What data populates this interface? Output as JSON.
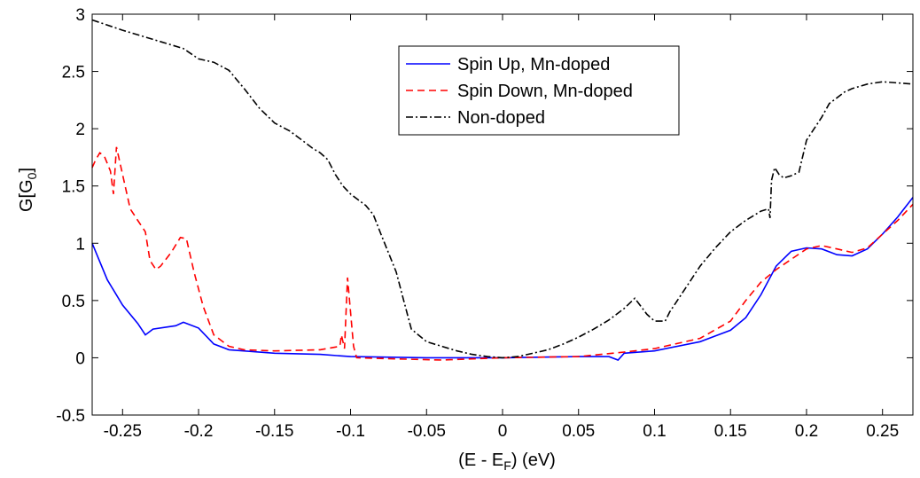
{
  "chart_data": {
    "type": "line",
    "xlabel": "(E - E",
    "xlabel_sub": "F",
    "xlabel_tail": ") (eV)",
    "ylabel": "G[G",
    "ylabel_sub": "0",
    "ylabel_tail": "]",
    "xlim": [
      -0.27,
      0.27
    ],
    "ylim": [
      -0.5,
      3
    ],
    "grid": false,
    "legend_position": "top-center",
    "xticks": [
      -0.25,
      -0.2,
      -0.15,
      -0.1,
      -0.05,
      0,
      0.05,
      0.1,
      0.15,
      0.2,
      0.25
    ],
    "xtick_labels": [
      "-0.25",
      "-0.2",
      "-0.15",
      "-0.1",
      "-0.05",
      "0",
      "0.05",
      "0.1",
      "0.15",
      "0.2",
      "0.25"
    ],
    "yticks": [
      -0.5,
      0,
      0.5,
      1,
      1.5,
      2,
      2.5,
      3
    ],
    "ytick_labels": [
      "-0.5",
      "0",
      "0.5",
      "1",
      "1.5",
      "2",
      "2.5",
      "3"
    ],
    "series": [
      {
        "name": "Spin Up, Mn-doped",
        "color": "#0000ff",
        "dash": "solid",
        "points": [
          [
            -0.27,
            1.0
          ],
          [
            -0.26,
            0.68
          ],
          [
            -0.25,
            0.46
          ],
          [
            -0.24,
            0.3
          ],
          [
            -0.235,
            0.2
          ],
          [
            -0.23,
            0.25
          ],
          [
            -0.22,
            0.27
          ],
          [
            -0.215,
            0.28
          ],
          [
            -0.21,
            0.31
          ],
          [
            -0.2,
            0.26
          ],
          [
            -0.19,
            0.12
          ],
          [
            -0.18,
            0.07
          ],
          [
            -0.15,
            0.04
          ],
          [
            -0.12,
            0.03
          ],
          [
            -0.1,
            0.01
          ],
          [
            -0.05,
            0.0
          ],
          [
            0.0,
            0.0
          ],
          [
            0.05,
            0.01
          ],
          [
            0.07,
            0.01
          ],
          [
            0.076,
            -0.02
          ],
          [
            0.08,
            0.04
          ],
          [
            0.1,
            0.06
          ],
          [
            0.13,
            0.14
          ],
          [
            0.15,
            0.24
          ],
          [
            0.16,
            0.35
          ],
          [
            0.17,
            0.55
          ],
          [
            0.18,
            0.8
          ],
          [
            0.19,
            0.93
          ],
          [
            0.2,
            0.96
          ],
          [
            0.21,
            0.95
          ],
          [
            0.22,
            0.9
          ],
          [
            0.23,
            0.89
          ],
          [
            0.24,
            0.95
          ],
          [
            0.25,
            1.08
          ],
          [
            0.26,
            1.23
          ],
          [
            0.27,
            1.4
          ]
        ]
      },
      {
        "name": "Spin Down, Mn-doped",
        "color": "#ff0000",
        "dash": "8,5",
        "points": [
          [
            -0.27,
            1.66
          ],
          [
            -0.268,
            1.72
          ],
          [
            -0.265,
            1.79
          ],
          [
            -0.262,
            1.76
          ],
          [
            -0.258,
            1.63
          ],
          [
            -0.256,
            1.43
          ],
          [
            -0.254,
            1.84
          ],
          [
            -0.25,
            1.6
          ],
          [
            -0.245,
            1.3
          ],
          [
            -0.24,
            1.2
          ],
          [
            -0.235,
            1.1
          ],
          [
            -0.232,
            0.85
          ],
          [
            -0.228,
            0.77
          ],
          [
            -0.225,
            0.8
          ],
          [
            -0.218,
            0.92
          ],
          [
            -0.212,
            1.05
          ],
          [
            -0.208,
            1.04
          ],
          [
            -0.203,
            0.75
          ],
          [
            -0.197,
            0.45
          ],
          [
            -0.19,
            0.2
          ],
          [
            -0.18,
            0.1
          ],
          [
            -0.17,
            0.07
          ],
          [
            -0.15,
            0.06
          ],
          [
            -0.12,
            0.07
          ],
          [
            -0.107,
            0.1
          ],
          [
            -0.106,
            0.2
          ],
          [
            -0.104,
            0.08
          ],
          [
            -0.102,
            0.7
          ],
          [
            -0.1,
            0.4
          ],
          [
            -0.098,
            0.1
          ],
          [
            -0.096,
            0.0
          ],
          [
            -0.07,
            -0.01
          ],
          [
            -0.04,
            -0.02
          ],
          [
            0.0,
            0.0
          ],
          [
            0.05,
            0.01
          ],
          [
            0.08,
            0.05
          ],
          [
            0.1,
            0.08
          ],
          [
            0.13,
            0.17
          ],
          [
            0.15,
            0.32
          ],
          [
            0.16,
            0.5
          ],
          [
            0.17,
            0.66
          ],
          [
            0.18,
            0.77
          ],
          [
            0.19,
            0.86
          ],
          [
            0.2,
            0.95
          ],
          [
            0.21,
            0.98
          ],
          [
            0.22,
            0.95
          ],
          [
            0.23,
            0.92
          ],
          [
            0.24,
            0.96
          ],
          [
            0.25,
            1.08
          ],
          [
            0.26,
            1.2
          ],
          [
            0.27,
            1.34
          ]
        ]
      },
      {
        "name": "Non-doped",
        "color": "#000000",
        "dash": "8,3,2,3",
        "points": [
          [
            -0.27,
            2.95
          ],
          [
            -0.25,
            2.86
          ],
          [
            -0.23,
            2.78
          ],
          [
            -0.21,
            2.7
          ],
          [
            -0.2,
            2.61
          ],
          [
            -0.19,
            2.58
          ],
          [
            -0.18,
            2.51
          ],
          [
            -0.17,
            2.35
          ],
          [
            -0.16,
            2.18
          ],
          [
            -0.15,
            2.05
          ],
          [
            -0.14,
            1.98
          ],
          [
            -0.13,
            1.88
          ],
          [
            -0.125,
            1.83
          ],
          [
            -0.12,
            1.79
          ],
          [
            -0.115,
            1.73
          ],
          [
            -0.11,
            1.6
          ],
          [
            -0.105,
            1.5
          ],
          [
            -0.1,
            1.43
          ],
          [
            -0.09,
            1.33
          ],
          [
            -0.085,
            1.25
          ],
          [
            -0.08,
            1.08
          ],
          [
            -0.07,
            0.75
          ],
          [
            -0.065,
            0.5
          ],
          [
            -0.06,
            0.25
          ],
          [
            -0.05,
            0.14
          ],
          [
            -0.04,
            0.1
          ],
          [
            -0.03,
            0.06
          ],
          [
            -0.02,
            0.03
          ],
          [
            -0.01,
            0.01
          ],
          [
            0.0,
            0.0
          ],
          [
            0.01,
            0.01
          ],
          [
            0.02,
            0.04
          ],
          [
            0.03,
            0.07
          ],
          [
            0.04,
            0.12
          ],
          [
            0.05,
            0.18
          ],
          [
            0.06,
            0.25
          ],
          [
            0.07,
            0.33
          ],
          [
            0.08,
            0.43
          ],
          [
            0.087,
            0.52
          ],
          [
            0.095,
            0.38
          ],
          [
            0.1,
            0.32
          ],
          [
            0.107,
            0.32
          ],
          [
            0.11,
            0.4
          ],
          [
            0.12,
            0.6
          ],
          [
            0.13,
            0.8
          ],
          [
            0.14,
            0.96
          ],
          [
            0.15,
            1.1
          ],
          [
            0.16,
            1.2
          ],
          [
            0.17,
            1.28
          ],
          [
            0.175,
            1.3
          ],
          [
            0.176,
            1.22
          ],
          [
            0.177,
            1.55
          ],
          [
            0.179,
            1.66
          ],
          [
            0.182,
            1.6
          ],
          [
            0.185,
            1.57
          ],
          [
            0.19,
            1.59
          ],
          [
            0.195,
            1.62
          ],
          [
            0.2,
            1.9
          ],
          [
            0.21,
            2.1
          ],
          [
            0.215,
            2.22
          ],
          [
            0.22,
            2.27
          ],
          [
            0.225,
            2.32
          ],
          [
            0.23,
            2.35
          ],
          [
            0.24,
            2.39
          ],
          [
            0.25,
            2.41
          ],
          [
            0.26,
            2.4
          ],
          [
            0.27,
            2.39
          ]
        ]
      }
    ]
  }
}
